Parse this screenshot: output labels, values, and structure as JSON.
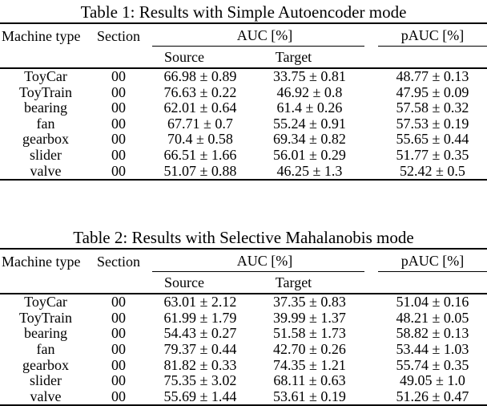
{
  "colors": {
    "background": "#ffffff",
    "text": "#000000",
    "rule": "#000000"
  },
  "tables": [
    {
      "caption": "Table 1: Results with Simple Autoencoder mode",
      "headers": {
        "machine_type": "Machine type",
        "section": "Section",
        "auc_group": "AUC [%]",
        "pauc": "pAUC [%]",
        "source": "Source",
        "target": "Target"
      },
      "rows": [
        {
          "machine": "ToyCar",
          "section": "00",
          "source": "66.98 ± 0.89",
          "target": "33.75 ± 0.81",
          "pauc": "48.77 ± 0.13"
        },
        {
          "machine": "ToyTrain",
          "section": "00",
          "source": "76.63 ± 0.22",
          "target": "46.92 ± 0.8",
          "pauc": "47.95 ± 0.09"
        },
        {
          "machine": "bearing",
          "section": "00",
          "source": "62.01 ± 0.64",
          "target": "61.4 ± 0.26",
          "pauc": "57.58 ± 0.32"
        },
        {
          "machine": "fan",
          "section": "00",
          "source": "67.71 ± 0.7",
          "target": "55.24 ± 0.91",
          "pauc": "57.53 ± 0.19"
        },
        {
          "machine": "gearbox",
          "section": "00",
          "source": "70.4 ± 0.58",
          "target": "69.34 ± 0.82",
          "pauc": "55.65 ± 0.44"
        },
        {
          "machine": "slider",
          "section": "00",
          "source": "66.51 ± 1.66",
          "target": "56.01 ± 0.29",
          "pauc": "51.77 ± 0.35"
        },
        {
          "machine": "valve",
          "section": "00",
          "source": "51.07 ± 0.88",
          "target": "46.25 ± 1.3",
          "pauc": "52.42 ± 0.5"
        }
      ]
    },
    {
      "caption": "Table 2: Results with Selective Mahalanobis mode",
      "headers": {
        "machine_type": "Machine type",
        "section": "Section",
        "auc_group": "AUC [%]",
        "pauc": "pAUC [%]",
        "source": "Source",
        "target": "Target"
      },
      "rows": [
        {
          "machine": "ToyCar",
          "section": "00",
          "source": "63.01 ± 2.12",
          "target": "37.35 ± 0.83",
          "pauc": "51.04 ± 0.16"
        },
        {
          "machine": "ToyTrain",
          "section": "00",
          "source": "61.99 ± 1.79",
          "target": "39.99 ± 1.37",
          "pauc": "48.21 ± 0.05"
        },
        {
          "machine": "bearing",
          "section": "00",
          "source": "54.43 ± 0.27",
          "target": "51.58 ± 1.73",
          "pauc": "58.82 ± 0.13"
        },
        {
          "machine": "fan",
          "section": "00",
          "source": "79.37 ± 0.44",
          "target": "42.70 ± 0.26",
          "pauc": "53.44 ± 1.03"
        },
        {
          "machine": "gearbox",
          "section": "00",
          "source": "81.82 ± 0.33",
          "target": "74.35 ± 1.21",
          "pauc": "55.74 ± 0.35"
        },
        {
          "machine": "slider",
          "section": "00",
          "source": "75.35 ± 3.02",
          "target": "68.11 ± 0.63",
          "pauc": "49.05 ± 1.0"
        },
        {
          "machine": "valve",
          "section": "00",
          "source": "55.69 ± 1.44",
          "target": "53.61 ± 0.19",
          "pauc": "51.26 ± 0.47"
        }
      ]
    }
  ]
}
